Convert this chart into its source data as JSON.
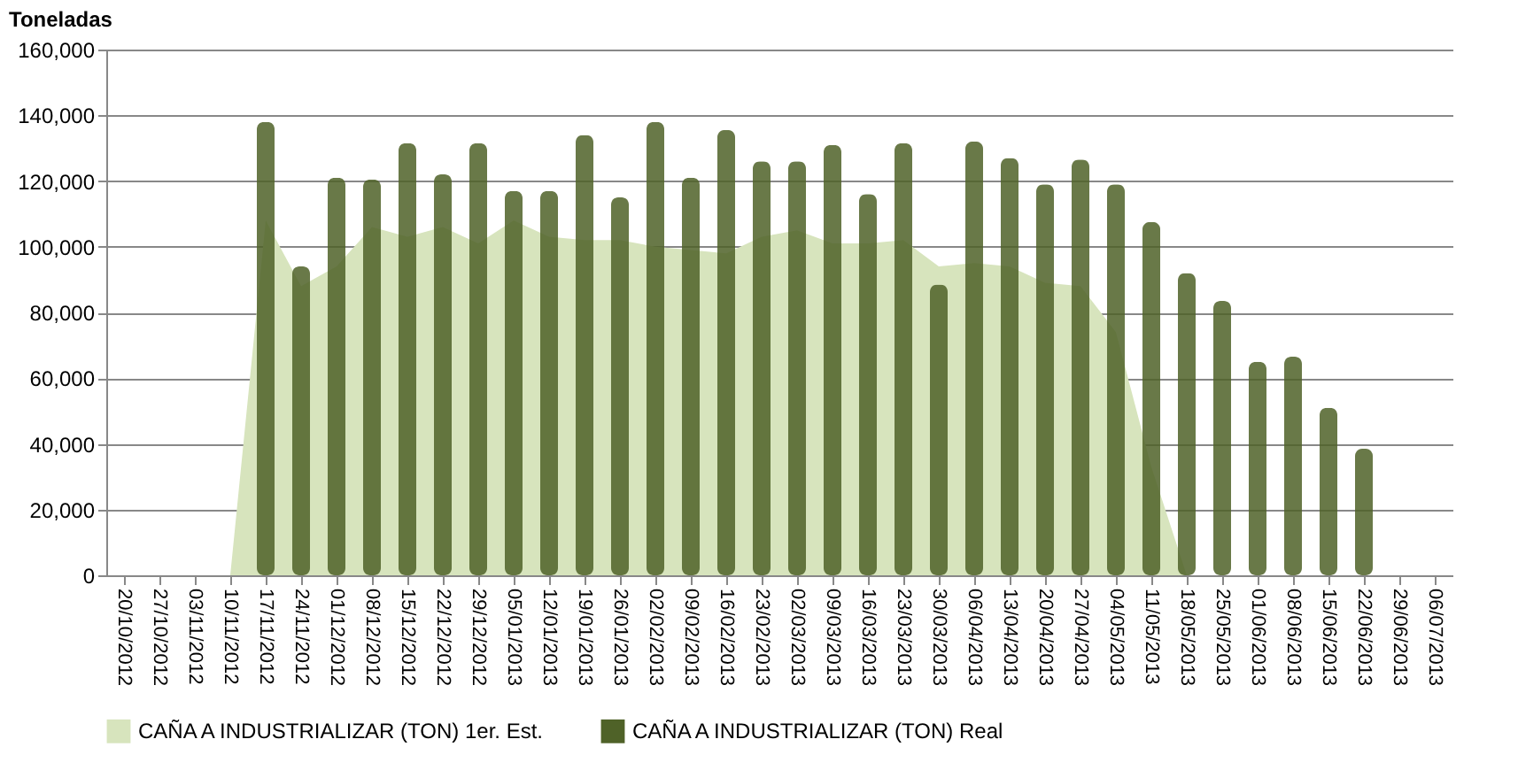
{
  "chart_data": {
    "type": "bar",
    "ylabel": "Toneladas",
    "categories": [
      "20/10/2012",
      "27/10/2012",
      "03/11/2012",
      "10/11/2012",
      "17/11/2012",
      "24/11/2012",
      "01/12/2012",
      "08/12/2012",
      "15/12/2012",
      "22/12/2012",
      "29/12/2012",
      "05/01/2013",
      "12/01/2013",
      "19/01/2013",
      "26/01/2013",
      "02/02/2013",
      "09/02/2013",
      "16/02/2013",
      "23/02/2013",
      "02/03/2013",
      "09/03/2013",
      "16/03/2013",
      "23/03/2013",
      "30/03/2013",
      "06/04/2013",
      "13/04/2013",
      "20/04/2013",
      "27/04/2013",
      "04/05/2013",
      "11/05/2013",
      "18/05/2013",
      "25/05/2013",
      "01/06/2013",
      "08/06/2013",
      "15/06/2013",
      "22/06/2013",
      "29/06/2013",
      "06/07/2013"
    ],
    "series": [
      {
        "name": "CAÑA A INDUSTRIALIZAR (TON) 1er. Est.",
        "type": "area",
        "color": "#d7e4bd",
        "values": [
          null,
          null,
          null,
          0,
          108000,
          88000,
          94000,
          106000,
          103000,
          106000,
          101000,
          108000,
          103000,
          102000,
          102000,
          100000,
          99000,
          98000,
          103000,
          105000,
          101000,
          101000,
          102000,
          94000,
          95000,
          94000,
          89000,
          88000,
          74000,
          33000,
          0,
          null,
          null,
          null,
          null,
          null,
          null,
          null
        ]
      },
      {
        "name": "CAÑA A INDUSTRIALIZAR (TON) Real",
        "color": "#4f6228",
        "values": [
          null,
          null,
          null,
          null,
          138000,
          94000,
          121000,
          120500,
          131500,
          122000,
          131500,
          117000,
          117000,
          134000,
          115000,
          138000,
          121000,
          135500,
          126000,
          126000,
          131000,
          116000,
          131500,
          88500,
          132000,
          127000,
          119000,
          126500,
          119000,
          107500,
          92000,
          83500,
          65000,
          66500,
          51000,
          38500,
          null,
          null
        ]
      }
    ],
    "ylim": [
      0,
      160000
    ],
    "yticks": [
      0,
      {
        "value": 20000,
        "label": "20,000"
      },
      {
        "value": 40000,
        "label": "40,000"
      },
      {
        "value": 60000,
        "label": "60,000"
      },
      {
        "value": 80000,
        "label": "80,000"
      },
      {
        "value": 100000,
        "label": "100,000"
      },
      {
        "value": 120000,
        "label": "120,000"
      },
      {
        "value": 140000,
        "label": "140,000"
      },
      {
        "value": 160000,
        "label": "160,000"
      }
    ],
    "grid": "y",
    "legend": "bottom"
  }
}
